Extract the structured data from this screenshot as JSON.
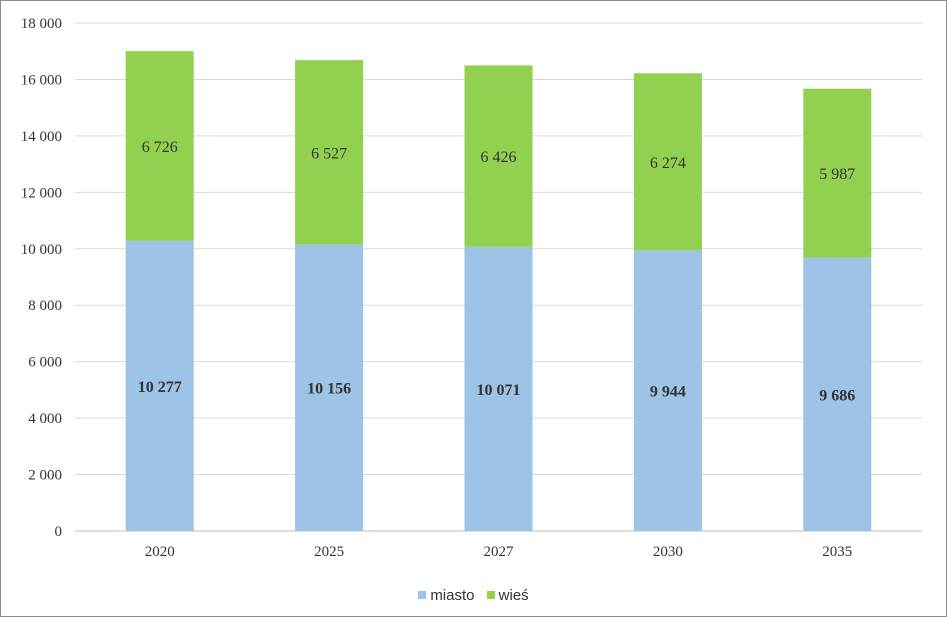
{
  "chart_data": {
    "type": "bar",
    "stacked": true,
    "categories": [
      "2020",
      "2025",
      "2027",
      "2030",
      "2035"
    ],
    "series": [
      {
        "name": "miasto",
        "color": "#9dc3e6",
        "values": [
          10277,
          10156,
          10071,
          9944,
          9686
        ],
        "labels": [
          "10 277",
          "10 156",
          "10 071",
          "9 944",
          "9 686"
        ]
      },
      {
        "name": "wieś",
        "color": "#92d050",
        "values": [
          6726,
          6527,
          6426,
          6274,
          5987
        ],
        "labels": [
          "6 726",
          "6 527",
          "6 426",
          "6 274",
          "5 987"
        ]
      }
    ],
    "ylim": [
      0,
      18000
    ],
    "yticks": [
      0,
      2000,
      4000,
      6000,
      8000,
      10000,
      12000,
      14000,
      16000,
      18000
    ],
    "ytick_labels": [
      "0",
      "2 000",
      "4 000",
      "6 000",
      "8 000",
      "10 000",
      "12 000",
      "14 000",
      "16 000",
      "18 000"
    ],
    "grid": true,
    "legend_position": "bottom"
  }
}
